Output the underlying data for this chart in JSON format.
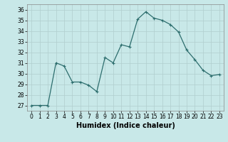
{
  "x": [
    0,
    1,
    2,
    3,
    4,
    5,
    6,
    7,
    8,
    9,
    10,
    11,
    12,
    13,
    14,
    15,
    16,
    17,
    18,
    19,
    20,
    21,
    22,
    23
  ],
  "y": [
    27,
    27,
    27,
    31,
    30.7,
    29.2,
    29.2,
    28.9,
    28.3,
    31.5,
    31.0,
    32.7,
    32.5,
    35.1,
    35.8,
    35.2,
    35.0,
    34.6,
    33.9,
    32.2,
    31.3,
    30.3,
    29.8,
    29.9
  ],
  "line_color": "#2d6e6e",
  "marker": "+",
  "marker_size": 3,
  "marker_linewidth": 0.8,
  "bg_color": "#c8e8e8",
  "grid_color": "#b0cece",
  "xlabel": "Humidex (Indice chaleur)",
  "xlim": [
    -0.5,
    23.5
  ],
  "ylim": [
    26.5,
    36.5
  ],
  "yticks": [
    27,
    28,
    29,
    30,
    31,
    32,
    33,
    34,
    35,
    36
  ],
  "xticks": [
    0,
    1,
    2,
    3,
    4,
    5,
    6,
    7,
    8,
    9,
    10,
    11,
    12,
    13,
    14,
    15,
    16,
    17,
    18,
    19,
    20,
    21,
    22,
    23
  ],
  "tick_fontsize": 5.5,
  "xlabel_fontsize": 7,
  "linewidth": 0.9
}
